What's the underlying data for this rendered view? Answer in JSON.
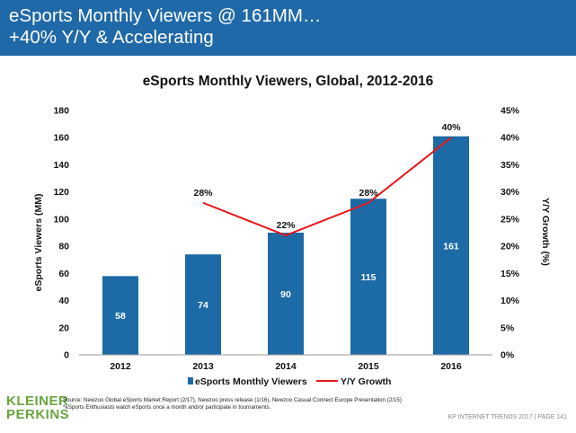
{
  "header": {
    "line1": "eSports Monthly Viewers @ 161MM…",
    "line2": "+40% Y/Y & Accelerating",
    "background": "#2069a8"
  },
  "chart_data": {
    "type": "bar",
    "title": "eSports Monthly Viewers, Global, 2012-2016",
    "categories": [
      "2012",
      "2013",
      "2014",
      "2015",
      "2016"
    ],
    "series": [
      {
        "name": "eSports Monthly Viewers",
        "type": "bar",
        "axis": "left",
        "values": [
          58,
          74,
          90,
          115,
          161
        ],
        "data_labels": [
          "58",
          "74",
          "90",
          "115",
          "161"
        ],
        "color": "#1c6aa6"
      },
      {
        "name": "Y/Y Growth",
        "type": "line",
        "axis": "right",
        "values": [
          null,
          28,
          22,
          28,
          40
        ],
        "data_labels": [
          "",
          "28%",
          "22%",
          "28%",
          "40%"
        ],
        "color": "#e8151b"
      }
    ],
    "ylabel": "eSports Viewers (MM)",
    "ylim": [
      0,
      180
    ],
    "yticks": [
      "0",
      "20",
      "40",
      "60",
      "80",
      "100",
      "120",
      "140",
      "160",
      "180"
    ],
    "y2label": "Y/Y Growth (%)",
    "y2lim": [
      0,
      45
    ],
    "y2ticks": [
      "0%",
      "5%",
      "10%",
      "15%",
      "20%",
      "25%",
      "30%",
      "35%",
      "40%",
      "45%"
    ],
    "legend_position": "bottom",
    "grid": false
  },
  "footer": {
    "logo_line1": "KLEINER",
    "logo_line2": "PERKINS",
    "source_line1": "Source: Newzoo Global eSports Market Report (2/17), Newzoo press release (1/16), Newzoo Casual Connect Europe Presentation (2/15)",
    "source_line2": "*eSports Enthusiasts watch eSports once a month and/or participate in tournaments.",
    "page_label": "KP INTERNET TRENDS 2017  |  PAGE 141",
    "logo_color": "#69a53f"
  }
}
